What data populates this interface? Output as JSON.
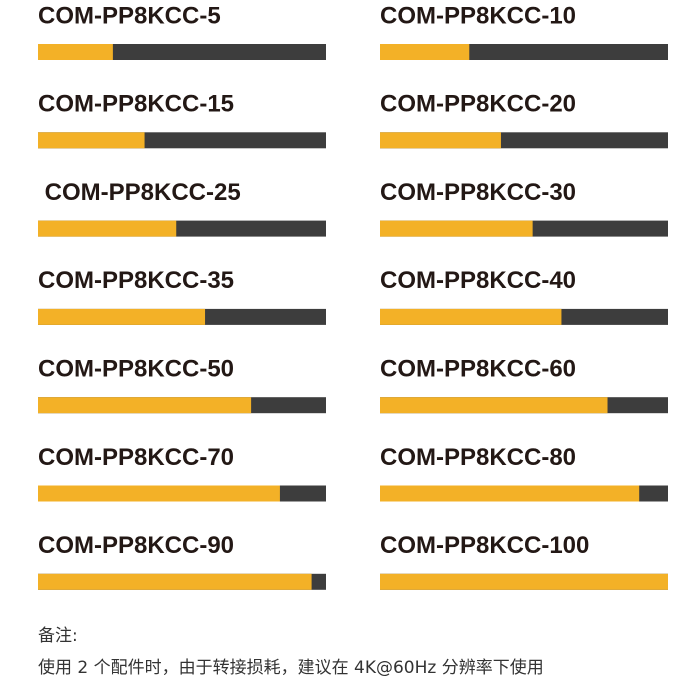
{
  "chart_data": {
    "type": "progress",
    "categories": [
      "COM-PP8KCC-5",
      "COM-PP8KCC-10",
      "COM-PP8KCC-15",
      "COM-PP8KCC-20",
      " COM-PP8KCC-25",
      "COM-PP8KCC-30",
      "COM-PP8KCC-35",
      "COM-PP8KCC-40",
      "COM-PP8KCC-50",
      "COM-PP8KCC-60",
      "COM-PP8KCC-70",
      "COM-PP8KCC-80",
      "COM-PP8KCC-90",
      "COM-PP8KCC-100"
    ],
    "values": [
      26,
      31,
      37,
      42,
      48,
      53,
      58,
      63,
      74,
      79,
      84,
      90,
      95,
      100
    ],
    "ylim": [
      0,
      100
    ],
    "color": "#f3b127",
    "track_color": "#3d3d3d"
  },
  "notes": {
    "title": "备注:",
    "text": "使用 2 个配件时，由于转接损耗，建议在 4K@60Hz 分辨率下使用"
  }
}
